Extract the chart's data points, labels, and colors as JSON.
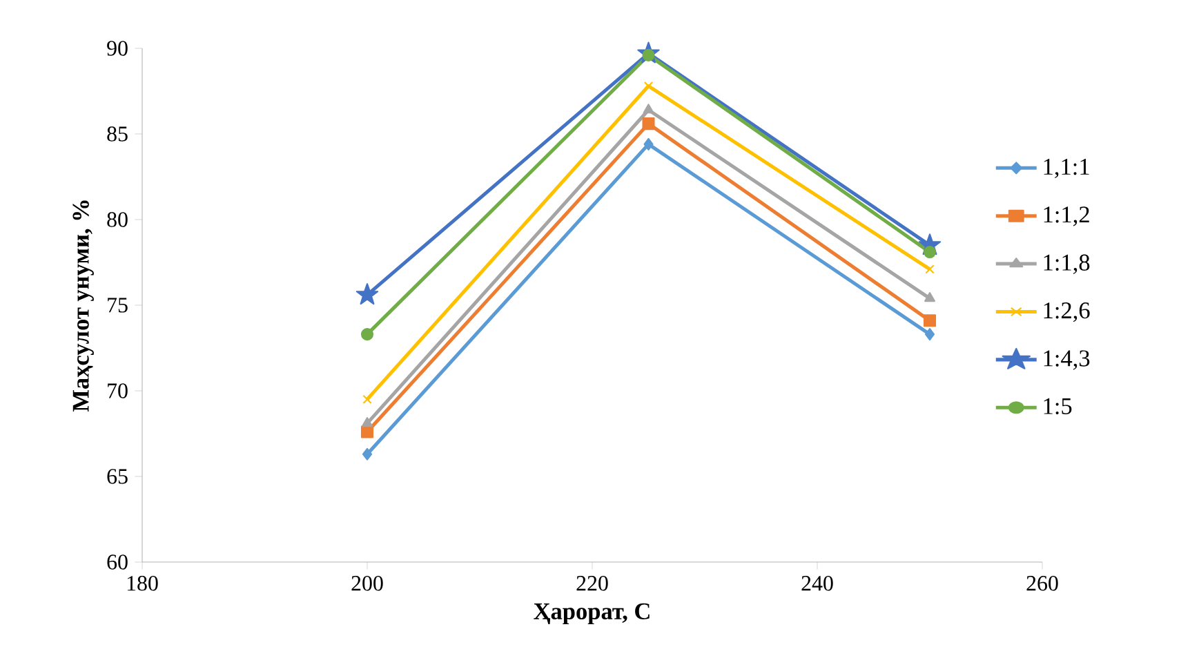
{
  "chart_data": {
    "type": "line",
    "xlabel": "Ҳарорат, С",
    "ylabel": "Маҳсулот унуми, %",
    "x": [
      200,
      225,
      250
    ],
    "series": [
      {
        "name": "1,1:1",
        "color": "#5b9bd5",
        "marker": "diamond",
        "values": [
          66.3,
          84.4,
          73.3
        ]
      },
      {
        "name": "1:1,2",
        "color": "#ed7d31",
        "marker": "square",
        "values": [
          67.6,
          85.6,
          74.1
        ]
      },
      {
        "name": "1:1,8",
        "color": "#a5a5a5",
        "marker": "triangle",
        "values": [
          68.1,
          86.4,
          75.4
        ]
      },
      {
        "name": "1:2,6",
        "color": "#ffc000",
        "marker": "cross",
        "values": [
          69.5,
          87.8,
          77.1
        ]
      },
      {
        "name": "1:4,3",
        "color": "#4472c4",
        "marker": "star",
        "values": [
          75.6,
          89.7,
          78.5
        ]
      },
      {
        "name": "1:5",
        "color": "#70ad47",
        "marker": "circle",
        "values": [
          73.3,
          89.6,
          78.1
        ]
      }
    ],
    "xlim": [
      180,
      260
    ],
    "xticks": [
      180,
      200,
      220,
      240,
      260
    ],
    "ylim": [
      60,
      90
    ],
    "yticks": [
      60,
      65,
      70,
      75,
      80,
      85,
      90
    ],
    "grid": false,
    "legend": "right",
    "line_style": "solid"
  }
}
